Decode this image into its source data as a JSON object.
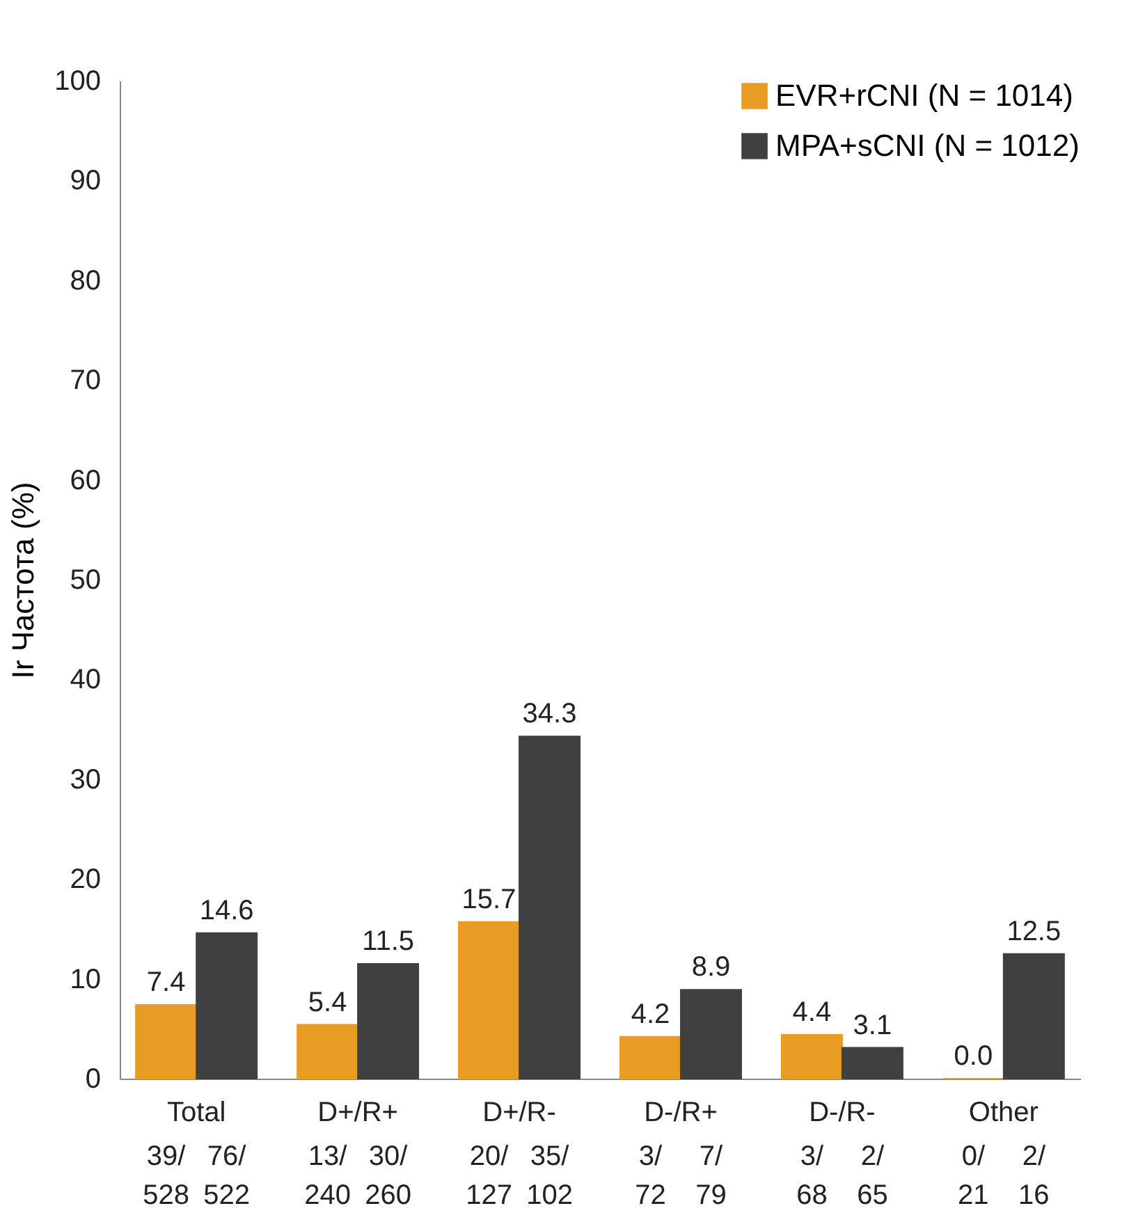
{
  "chart_data": {
    "type": "bar",
    "ylabel": "Ir Частота (%)",
    "categories": [
      "Total",
      "D+/R+",
      "D+/R-",
      "D-/R+",
      "D-/R-",
      "Other"
    ],
    "series": [
      {
        "name": "EVR+rCNI (N = 1014)",
        "color": "#e89c23",
        "values": [
          7.4,
          5.4,
          15.7,
          4.2,
          4.4,
          0.0
        ],
        "value_labels": [
          "7.4",
          "5.4",
          "15.7",
          "4.2",
          "4.4",
          "0.0"
        ]
      },
      {
        "name": "MPA+sCNI (N = 1012)",
        "color": "#404040",
        "values": [
          14.6,
          11.5,
          34.3,
          8.9,
          3.1,
          12.5
        ],
        "value_labels": [
          "14.6",
          "11.5",
          "34.3",
          "8.9",
          "3.1",
          "12.5"
        ]
      }
    ],
    "ylim": [
      0,
      100
    ],
    "yticks": [
      0,
      10,
      20,
      30,
      40,
      50,
      60,
      70,
      80,
      90,
      100
    ],
    "grid": false,
    "legend": "top right",
    "annotations": [
      "39/\n528",
      "76/\n522",
      "13/\n240",
      "30/\n260",
      "20/\n127",
      "35/\n102",
      "3/\n72",
      "7/\n79",
      "3/\n68",
      "2/\n65",
      "0/\n21",
      "2/\n16"
    ]
  }
}
